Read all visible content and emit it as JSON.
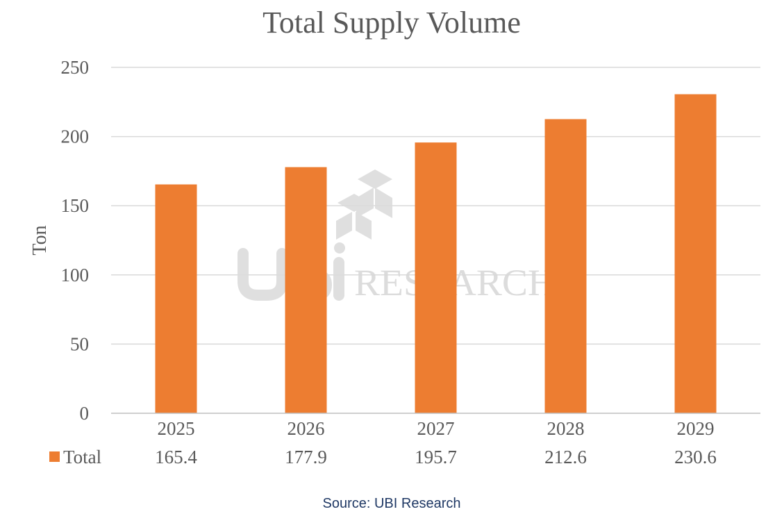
{
  "chart_data": {
    "type": "bar",
    "title": "Total  Supply Volume",
    "xlabel": "",
    "ylabel": "Ton",
    "categories": [
      "2025",
      "2026",
      "2027",
      "2028",
      "2029"
    ],
    "series": [
      {
        "name": "Total",
        "values": [
          165.4,
          177.9,
          195.7,
          212.6,
          230.6
        ],
        "color": "#ED7D31"
      }
    ],
    "value_labels": [
      "165.4",
      "177.9",
      "195.7",
      "212.6",
      "230.6"
    ],
    "ylim": [
      0,
      250
    ],
    "yticks": [
      "0",
      "50",
      "100",
      "150",
      "200",
      "250"
    ],
    "grid": true,
    "legend": "data-table"
  },
  "watermark": {
    "text": "UBI RESEARCH",
    "logo_icon": "ubi-cube-logo-icon"
  },
  "source": "Source: UBI Research"
}
